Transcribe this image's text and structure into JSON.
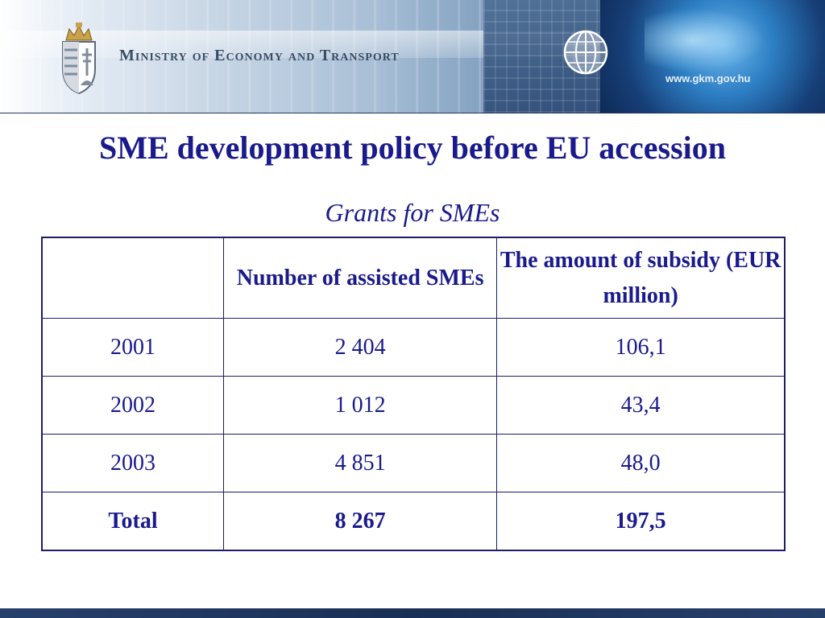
{
  "header": {
    "ministry": "Ministry of Economy and Transport",
    "url": "www.gkm.gov.hu",
    "logo": "hungarian-coat-of-arms-icon",
    "globe": "globe-icon"
  },
  "slide": {
    "title": "SME development policy before EU accession",
    "subtitle": "Grants for SMEs"
  },
  "table": {
    "headers": [
      "",
      "Number of assisted SMEs",
      "The amount of subsidy (EUR million)"
    ],
    "rows": [
      {
        "year": "2001",
        "count": "2 404",
        "amount": "106,1"
      },
      {
        "year": "2002",
        "count": "1 012",
        "amount": "43,4"
      },
      {
        "year": "2003",
        "count": "4 851",
        "amount": "48,0"
      }
    ],
    "total": {
      "label": "Total",
      "count": "8 267",
      "amount": "197,5"
    }
  },
  "colors": {
    "title": "#1a1a8c",
    "border": "#1c1c6a",
    "footer": "#1a2f55"
  }
}
